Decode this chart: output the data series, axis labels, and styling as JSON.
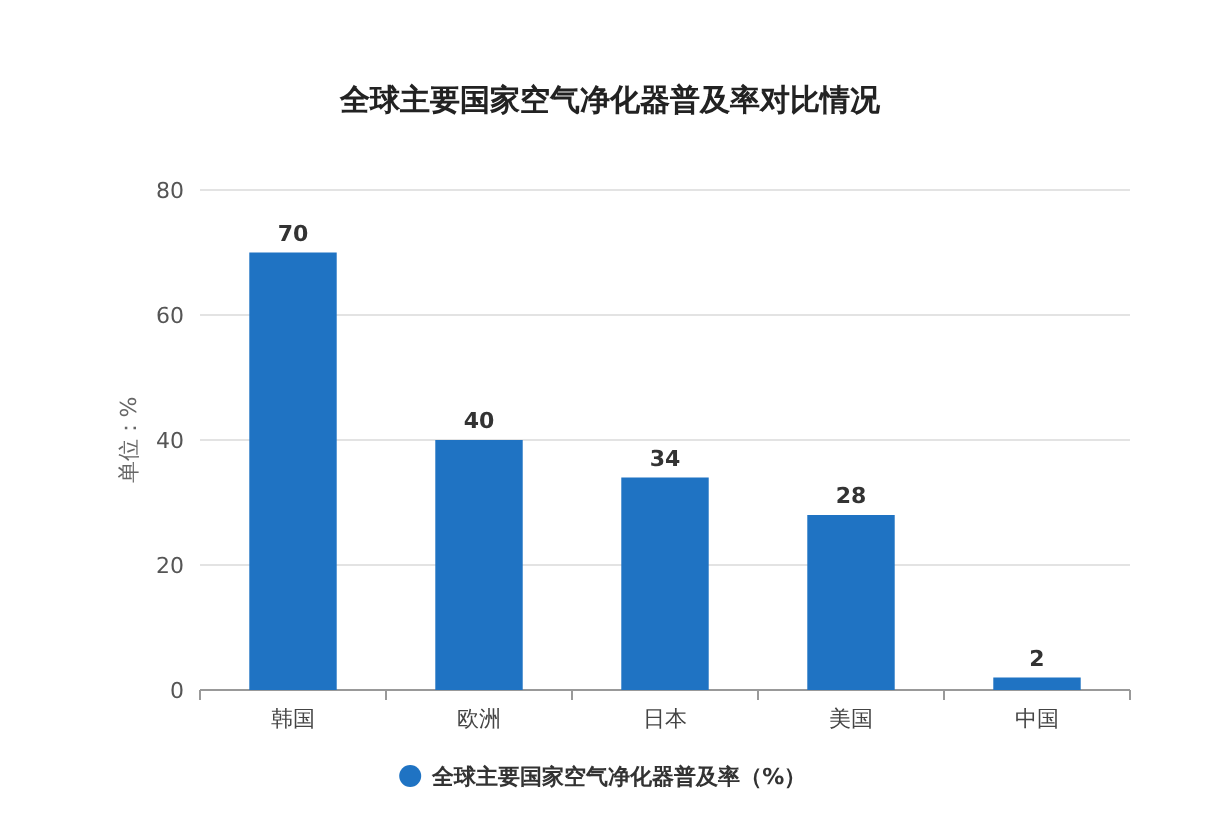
{
  "chart_data": {
    "type": "bar",
    "title": "全球主要国家空气净化器普及率对比情况",
    "ylabel": "单位：%",
    "categories": [
      "韩国",
      "欧洲",
      "日本",
      "美国",
      "中国"
    ],
    "series": [
      {
        "name": "全球主要国家空气净化器普及率（%）",
        "color": "#1f73c3",
        "values": [
          70,
          40,
          34,
          28,
          2
        ]
      }
    ],
    "ylim": [
      0,
      80
    ],
    "yticks": [
      0,
      20,
      40,
      60,
      80
    ],
    "grid": "y",
    "legend": "bottom",
    "data_labels": true
  }
}
